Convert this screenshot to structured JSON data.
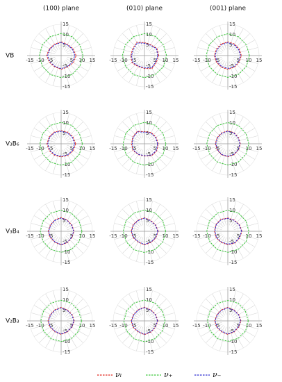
{
  "chart_data": {
    "type": "polar",
    "columns": [
      "(100) plane",
      "(010) plane",
      "(001) plane"
    ],
    "rows": [
      "VB",
      "V₃B₆",
      "V₃B₄",
      "V₂B₃"
    ],
    "angles": [
      0,
      30,
      60,
      90,
      120,
      150,
      180,
      210,
      240,
      270,
      300,
      330
    ],
    "rlim": [
      0,
      15
    ],
    "xticks": [
      -15,
      -10,
      -5,
      5,
      10,
      15
    ],
    "yticks": [
      -15,
      -10,
      -5,
      5,
      10,
      15
    ],
    "series": [
      {
        "name": "νₗ",
        "color": "#e0261e",
        "panels": [
          [
            7.2,
            6.6,
            6.2,
            6.6,
            6.3,
            6.5,
            7.0,
            6.5,
            6.2,
            6.6,
            6.3,
            6.8
          ],
          [
            6.8,
            6.9,
            6.0,
            6.2,
            7.4,
            6.5,
            6.6,
            6.9,
            6.1,
            6.2,
            7.2,
            6.6
          ],
          [
            6.5,
            6.3,
            6.4,
            6.6,
            6.4,
            6.3,
            6.5,
            6.3,
            6.4,
            6.6,
            6.4,
            6.3
          ],
          [
            7.0,
            6.6,
            6.4,
            6.3,
            6.5,
            6.6,
            6.8,
            6.6,
            6.4,
            6.3,
            6.5,
            6.7
          ],
          [
            6.6,
            6.4,
            6.3,
            5.8,
            6.9,
            6.5,
            6.2,
            6.4,
            6.0,
            5.9,
            6.7,
            6.8
          ],
          [
            6.0,
            5.9,
            6.1,
            6.2,
            6.0,
            5.9,
            6.0,
            5.9,
            6.1,
            6.2,
            6.0,
            5.9
          ],
          [
            6.2,
            6.0,
            6.1,
            6.6,
            6.2,
            6.0,
            6.2,
            6.0,
            6.1,
            6.6,
            6.2,
            6.0
          ],
          [
            6.6,
            6.2,
            6.0,
            6.5,
            6.2,
            6.3,
            6.4,
            6.2,
            6.0,
            6.5,
            6.2,
            6.3
          ],
          [
            6.8,
            6.4,
            6.2,
            6.4,
            6.6,
            6.6,
            6.4,
            6.4,
            6.2,
            6.4,
            6.6,
            6.5
          ],
          [
            6.3,
            6.1,
            6.0,
            6.5,
            6.1,
            6.0,
            6.3,
            6.1,
            6.0,
            6.5,
            6.1,
            6.0
          ],
          [
            6.4,
            6.2,
            6.1,
            6.6,
            6.2,
            6.1,
            6.4,
            6.2,
            6.1,
            6.6,
            6.2,
            6.1
          ],
          [
            6.3,
            6.1,
            6.0,
            6.5,
            6.1,
            6.0,
            6.3,
            6.1,
            6.0,
            6.5,
            6.1,
            6.0
          ]
        ]
      },
      {
        "name": "ν₊",
        "color": "#3cc83c",
        "panels": [
          [
            10.5,
            10.4,
            10.5,
            10.6,
            10.5,
            10.4,
            10.5,
            10.4,
            10.5,
            10.6,
            10.5,
            10.4
          ],
          [
            10.6,
            10.5,
            10.6,
            10.6,
            10.5,
            10.6,
            10.6,
            10.5,
            10.6,
            10.6,
            10.5,
            10.6
          ],
          [
            10.4,
            10.3,
            10.4,
            10.5,
            10.4,
            10.3,
            10.4,
            10.3,
            10.4,
            10.5,
            10.4,
            10.3
          ],
          [
            10.2,
            10.1,
            10.2,
            10.3,
            10.2,
            10.1,
            10.2,
            10.1,
            10.2,
            10.3,
            10.2,
            10.1
          ],
          [
            10.3,
            10.2,
            10.3,
            10.3,
            10.2,
            10.3,
            10.3,
            10.2,
            10.3,
            10.3,
            10.2,
            10.3
          ],
          [
            10.1,
            10.0,
            10.1,
            10.2,
            10.1,
            10.0,
            10.1,
            10.0,
            10.1,
            10.2,
            10.1,
            10.0
          ],
          [
            10.0,
            9.9,
            10.0,
            10.1,
            10.0,
            9.9,
            10.0,
            9.9,
            10.0,
            10.1,
            10.0,
            9.9
          ],
          [
            10.2,
            10.1,
            10.2,
            10.2,
            10.1,
            10.2,
            10.2,
            10.1,
            10.2,
            10.2,
            10.1,
            10.2
          ],
          [
            10.1,
            10.0,
            10.1,
            10.1,
            10.0,
            10.1,
            10.1,
            10.0,
            10.1,
            10.1,
            10.0,
            10.1
          ],
          [
            9.8,
            9.7,
            9.8,
            9.9,
            9.8,
            9.7,
            9.8,
            9.7,
            9.8,
            9.9,
            9.8,
            9.7
          ],
          [
            9.9,
            9.8,
            9.9,
            10.0,
            9.9,
            9.8,
            9.9,
            9.8,
            9.9,
            10.0,
            9.9,
            9.8
          ],
          [
            9.8,
            9.7,
            9.8,
            9.8,
            9.7,
            9.8,
            9.8,
            9.7,
            9.8,
            9.8,
            9.7,
            9.8
          ]
        ]
      },
      {
        "name": "ν₋",
        "color": "#2a2ad0",
        "panels": [
          [
            6.6,
            6.2,
            5.9,
            6.3,
            6.0,
            6.2,
            6.5,
            6.1,
            5.9,
            6.3,
            6.0,
            6.3
          ],
          [
            6.4,
            6.6,
            5.7,
            5.9,
            7.0,
            6.1,
            6.2,
            6.5,
            5.8,
            5.9,
            6.8,
            6.2
          ],
          [
            6.1,
            5.9,
            6.0,
            6.2,
            6.0,
            5.9,
            6.1,
            5.9,
            6.0,
            6.2,
            6.0,
            5.9
          ],
          [
            6.5,
            6.2,
            6.0,
            6.0,
            6.2,
            6.3,
            6.4,
            6.2,
            6.0,
            6.0,
            6.2,
            6.3
          ],
          [
            6.3,
            6.1,
            6.0,
            5.6,
            6.6,
            6.2,
            5.9,
            6.1,
            5.8,
            5.7,
            6.4,
            6.5
          ],
          [
            5.8,
            5.7,
            5.9,
            6.0,
            5.8,
            5.7,
            5.8,
            5.7,
            5.9,
            6.0,
            5.8,
            5.7
          ],
          [
            6.0,
            5.8,
            5.9,
            6.4,
            6.0,
            5.8,
            6.0,
            5.8,
            5.9,
            6.4,
            6.0,
            5.8
          ],
          [
            6.4,
            6.0,
            5.8,
            6.3,
            6.0,
            6.1,
            6.2,
            6.0,
            5.8,
            6.3,
            6.0,
            6.1
          ],
          [
            6.6,
            6.2,
            6.0,
            6.2,
            6.4,
            6.4,
            6.2,
            6.2,
            6.0,
            6.2,
            6.4,
            6.3
          ],
          [
            6.1,
            5.9,
            5.8,
            6.3,
            5.9,
            5.8,
            6.1,
            5.9,
            5.8,
            6.3,
            5.9,
            5.8
          ],
          [
            6.2,
            6.0,
            5.9,
            6.4,
            6.0,
            5.9,
            6.2,
            6.0,
            5.9,
            6.4,
            6.0,
            5.9
          ],
          [
            6.1,
            5.9,
            5.8,
            6.3,
            5.9,
            5.8,
            6.1,
            5.9,
            5.8,
            6.3,
            5.9,
            5.8
          ]
        ]
      }
    ]
  }
}
